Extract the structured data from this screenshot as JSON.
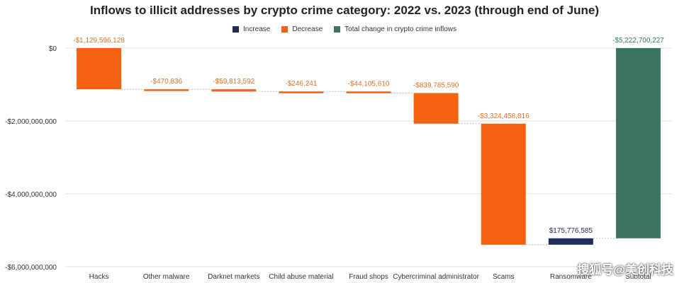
{
  "chart_data": {
    "type": "bar",
    "subtype": "waterfall",
    "title": "Inflows to illicit addresses by crypto crime category: 2022 vs. 2023 (through end of June)",
    "legend": [
      {
        "name": "Increase",
        "color": "#1f2d5a"
      },
      {
        "name": "Decrease",
        "color": "#f4620f"
      },
      {
        "name": "Total change in crypto crime inflows",
        "color": "#3a7563"
      }
    ],
    "legend_position": "top",
    "ylim": [
      -6100000000,
      0
    ],
    "yticks": [
      0,
      -2000000000,
      -4000000000,
      -6000000000
    ],
    "ytick_labels": [
      "$0",
      "-$2,000,000,000",
      "-$4,000,000,000",
      "-$6,000,000,000"
    ],
    "grid": true,
    "categories": [
      "Hacks",
      "Other malware",
      "Darknet markets",
      "Child abuse material",
      "Fraud shops",
      "Cybercriminal administrator",
      "Scams",
      "Ransomware",
      "Subtotal"
    ],
    "values": [
      -1129596128,
      -470836,
      -59813592,
      -246241,
      -44105610,
      -839785590,
      -3324458816,
      175776585,
      -5222700227
    ],
    "data_labels": [
      "-$1,129,596,128",
      "-$470,836",
      "-$59,813,592",
      "-$246,241",
      "-$44,105,610",
      "-$839,785,590",
      "-$3,324,458,816",
      "$175,776,585",
      "-$5,222,700,227"
    ],
    "bar_kinds": [
      "decrease",
      "decrease",
      "decrease",
      "decrease",
      "decrease",
      "decrease",
      "decrease",
      "increase",
      "total"
    ]
  },
  "colors": {
    "increase": "#1f2d5a",
    "decrease": "#f4620f",
    "total": "#3a7563",
    "decrease_label": "#d9732a",
    "increase_label": "#1f2d5a",
    "total_label": "#3a7563"
  },
  "watermark": "搜狐号@美创科技"
}
